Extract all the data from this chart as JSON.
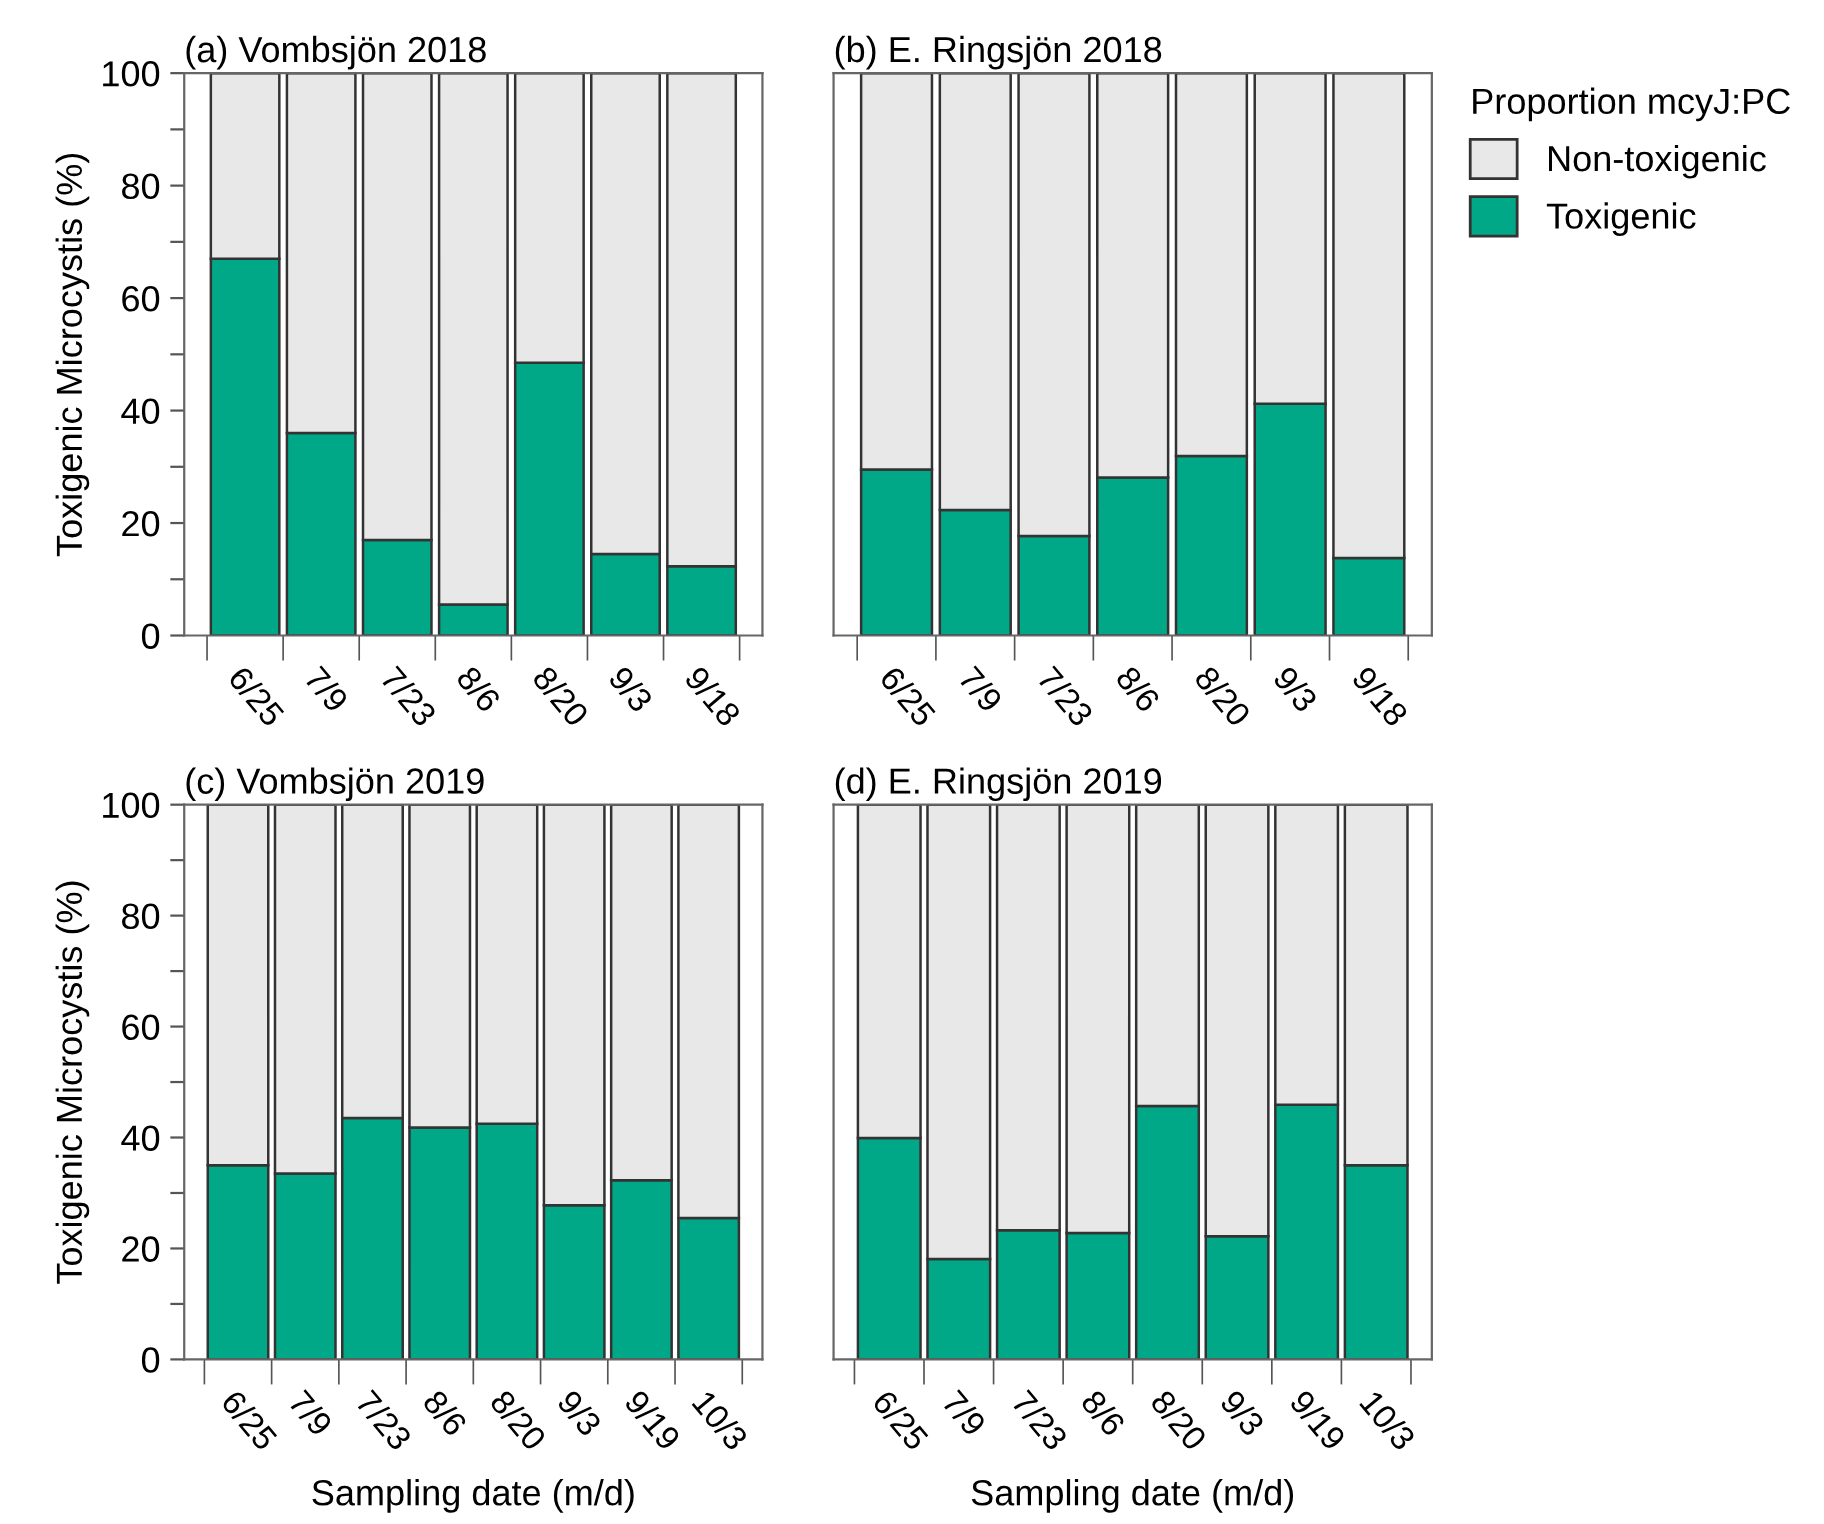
{
  "chart_data": [
    {
      "type": "bar",
      "stacked": true,
      "title": "(a) Vombsjön 2018",
      "ylabel": "Toxigenic Microcystis (%)",
      "categories": [
        "6/25",
        "7/9",
        "7/23",
        "8/6",
        "8/20",
        "9/3",
        "9/18"
      ],
      "series": [
        {
          "color": "#00a887",
          "values": [
            67,
            36,
            17,
            5.5,
            48.5,
            14.5,
            12.3
          ]
        },
        {
          "color": "#e8e8e8",
          "values": [
            33,
            64,
            83,
            94.5,
            51.5,
            85.5,
            87.7
          ]
        }
      ],
      "ylim": [
        0,
        100
      ],
      "yticks": [
        0,
        {
          "value": 10,
          "label": null
        },
        20,
        {
          "value": 30,
          "label": null
        },
        40,
        {
          "value": 50,
          "label": null
        },
        60,
        {
          "value": 70,
          "label": null
        },
        80,
        {
          "value": 90,
          "label": null
        },
        100
      ],
      "grid": false
    },
    {
      "type": "bar",
      "stacked": true,
      "title": "(b) E. Ringsjön 2018",
      "legend_title": "Proportion mcyJ:PC",
      "legend": "right",
      "tick_labels": "x",
      "categories": [
        "6/25",
        "7/9",
        "7/23",
        "8/6",
        "8/20",
        "9/3",
        "9/18"
      ],
      "series": [
        {
          "name": "Toxigenic",
          "color": "#00a887",
          "values": [
            29.5,
            22.3,
            17.7,
            28.1,
            31.9,
            41.2,
            13.8
          ]
        },
        {
          "name": "Non-toxigenic",
          "color": "#e8e8e8",
          "values": [
            70.5,
            77.7,
            82.3,
            71.9,
            68.1,
            58.8,
            86.2
          ]
        }
      ],
      "ylim": [
        0,
        100
      ],
      "grid": false
    },
    {
      "type": "bar",
      "stacked": true,
      "title": "(c) Vombsjön 2019",
      "xlabel": "Sampling date (m/d)",
      "ylabel": "Toxigenic Microcystis (%)",
      "categories": [
        "6/25",
        "7/9",
        "7/23",
        "8/6",
        "8/20",
        "9/3",
        "9/19",
        "10/3"
      ],
      "series": [
        {
          "color": "#00a887",
          "values": [
            35,
            33.5,
            43.5,
            41.8,
            42.5,
            27.8,
            32.3,
            25.5
          ]
        },
        {
          "color": "#e8e8e8",
          "values": [
            65,
            66.5,
            56.5,
            58.2,
            57.5,
            72.2,
            67.7,
            74.5
          ]
        }
      ],
      "ylim": [
        0,
        100
      ],
      "yticks": [
        0,
        {
          "value": 10,
          "label": null
        },
        20,
        {
          "value": 30,
          "label": null
        },
        40,
        {
          "value": 50,
          "label": null
        },
        60,
        {
          "value": 70,
          "label": null
        },
        80,
        {
          "value": 90,
          "label": null
        },
        100
      ],
      "grid": false
    },
    {
      "type": "bar",
      "stacked": true,
      "title": "(d) E. Ringsjön 2019",
      "xlabel": "Sampling date (m/d)",
      "tick_labels": "x",
      "categories": [
        "6/25",
        "7/9",
        "7/23",
        "8/6",
        "8/20",
        "9/3",
        "9/19",
        "10/3"
      ],
      "series": [
        {
          "color": "#00a887",
          "values": [
            39.9,
            18.1,
            23.3,
            22.8,
            45.7,
            22.2,
            45.9,
            35.0
          ]
        },
        {
          "color": "#e8e8e8",
          "values": [
            60.1,
            81.9,
            76.7,
            77.2,
            54.3,
            77.8,
            54.1,
            65.0
          ]
        }
      ],
      "ylim": [
        0,
        100
      ],
      "grid": false
    }
  ]
}
